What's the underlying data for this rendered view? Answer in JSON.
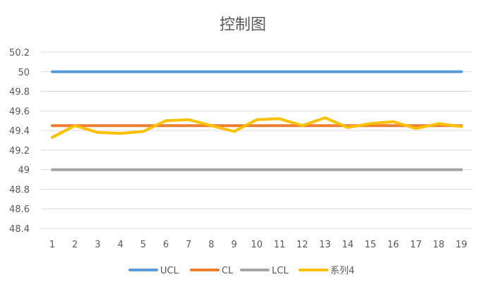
{
  "chart_data": {
    "type": "line",
    "title": "控制图",
    "xlabel": "",
    "ylabel": "",
    "categories": [
      "1",
      "2",
      "3",
      "4",
      "5",
      "6",
      "7",
      "8",
      "9",
      "10",
      "11",
      "12",
      "13",
      "14",
      "15",
      "16",
      "17",
      "18",
      "19"
    ],
    "ylim": [
      48.4,
      50.2
    ],
    "yticks": [
      "48.4",
      "48.6",
      "48.8",
      "49",
      "49.2",
      "49.4",
      "49.6",
      "49.8",
      "50",
      "50.2"
    ],
    "grid": true,
    "legend_position": "bottom",
    "series": [
      {
        "name": "UCL",
        "color": "#5B9BD5",
        "values": [
          50,
          50,
          50,
          50,
          50,
          50,
          50,
          50,
          50,
          50,
          50,
          50,
          50,
          50,
          50,
          50,
          50,
          50,
          50
        ]
      },
      {
        "name": "CL",
        "color": "#ED7D31",
        "values": [
          49.45,
          49.45,
          49.45,
          49.45,
          49.45,
          49.45,
          49.45,
          49.45,
          49.45,
          49.45,
          49.45,
          49.45,
          49.45,
          49.45,
          49.45,
          49.45,
          49.45,
          49.45,
          49.45
        ]
      },
      {
        "name": "LCL",
        "color": "#A5A5A5",
        "values": [
          49,
          49,
          49,
          49,
          49,
          49,
          49,
          49,
          49,
          49,
          49,
          49,
          49,
          49,
          49,
          49,
          49,
          49,
          49
        ]
      },
      {
        "name": "系列4",
        "color": "#FFC000",
        "values": [
          49.33,
          49.45,
          49.38,
          49.37,
          49.39,
          49.5,
          49.51,
          49.45,
          49.39,
          49.51,
          49.52,
          49.45,
          49.53,
          49.43,
          49.47,
          49.49,
          49.42,
          49.47,
          49.44
        ]
      }
    ]
  }
}
